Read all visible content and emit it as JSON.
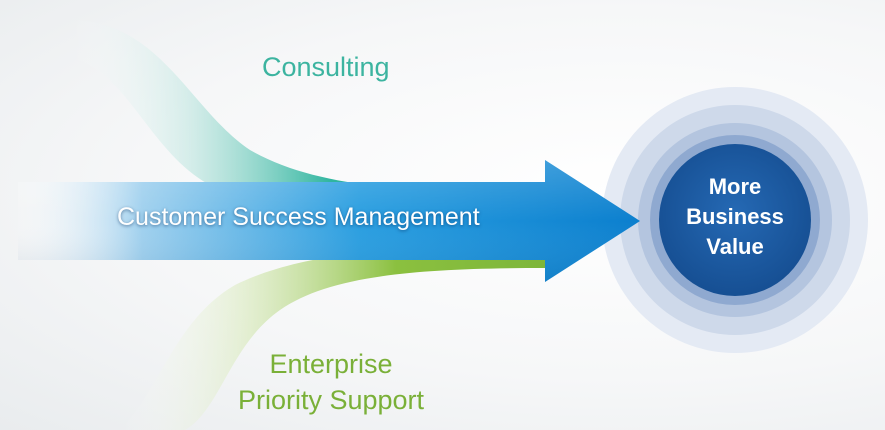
{
  "flows": {
    "consulting": "Consulting",
    "customer_success": "Customer Success Management",
    "enterprise_support": [
      "Enterprise",
      "Priority Support"
    ]
  },
  "target": {
    "lines": [
      "More",
      "Business",
      "Value"
    ]
  },
  "colors": {
    "consulting": "#2ab39b",
    "customer_success": "#1e8fd6",
    "enterprise_support": "#86bc3a",
    "target_core": "#1f5fa8",
    "target_rings": "#a9bcd8"
  }
}
